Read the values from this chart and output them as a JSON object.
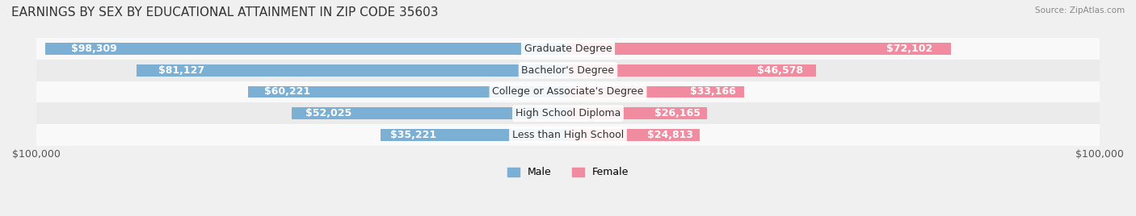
{
  "title": "EARNINGS BY SEX BY EDUCATIONAL ATTAINMENT IN ZIP CODE 35603",
  "source": "Source: ZipAtlas.com",
  "categories": [
    "Less than High School",
    "High School Diploma",
    "College or Associate's Degree",
    "Bachelor's Degree",
    "Graduate Degree"
  ],
  "male_values": [
    35221,
    52025,
    60221,
    81127,
    98309
  ],
  "female_values": [
    24813,
    26165,
    33166,
    46578,
    72102
  ],
  "male_color": "#7bafd4",
  "female_color": "#f08ba0",
  "male_label": "Male",
  "female_label": "Female",
  "x_max": 100000,
  "bar_height": 0.55,
  "background_color": "#f0f0f0",
  "row_bg_colors": [
    "#ffffff",
    "#f5f5f5"
  ],
  "title_fontsize": 11,
  "label_fontsize": 9,
  "tick_fontsize": 9
}
